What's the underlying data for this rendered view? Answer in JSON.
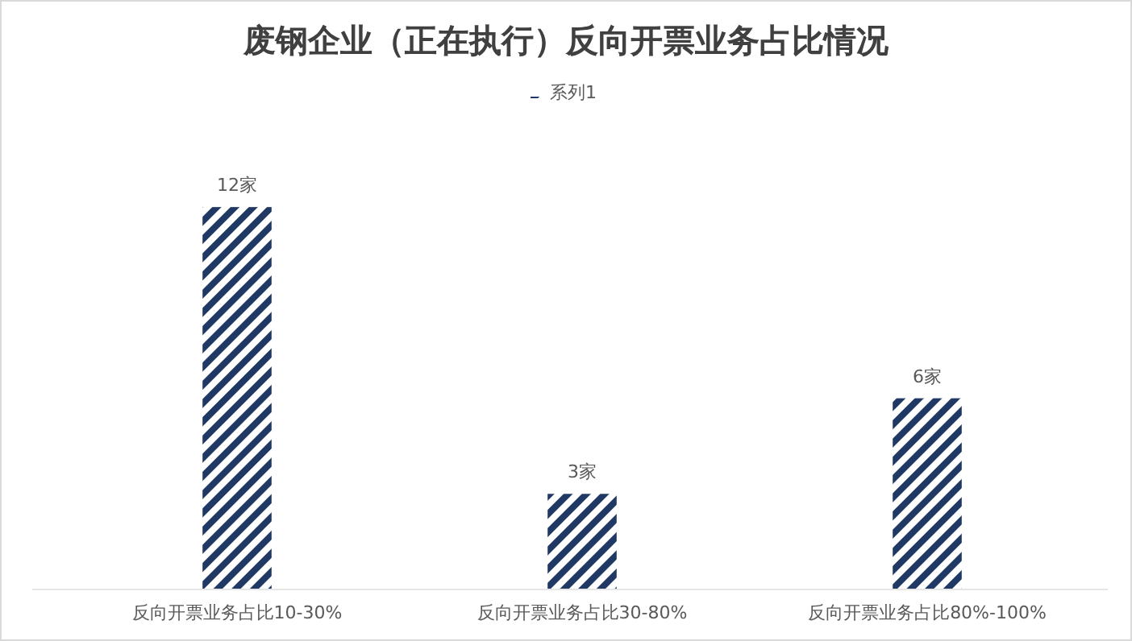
{
  "chart_data": {
    "type": "bar",
    "title": "废钢企业（正在执行）反向开票业务占比情况",
    "categories": [
      "反向开票业务占比10-30%",
      "反向开票业务占比30-80%",
      "反向开票业务占比80%-100%"
    ],
    "series": [
      {
        "name": "系列1",
        "color": "#203864",
        "values": [
          12,
          3,
          6
        ],
        "value_labels": [
          "12家",
          "3家",
          "6家"
        ]
      }
    ],
    "tick_labels": "x",
    "legend": "top"
  }
}
